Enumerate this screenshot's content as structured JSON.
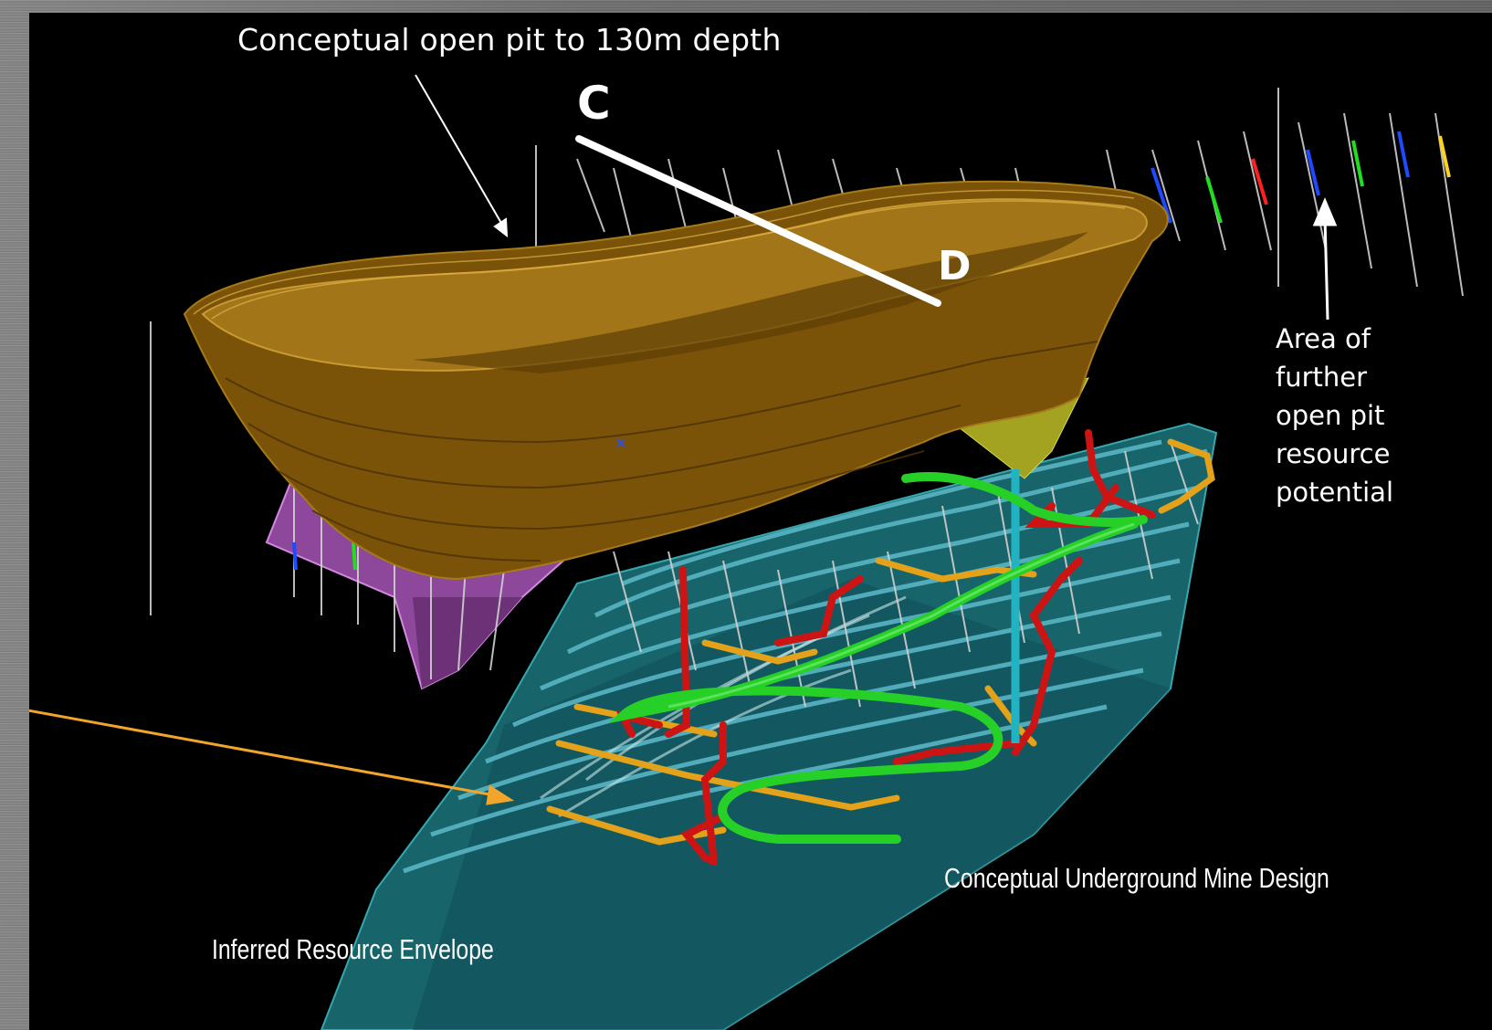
{
  "labels": {
    "pit": "Conceptual open pit to 130m depth",
    "c": "C",
    "d": "D",
    "area": [
      "Area of",
      "further",
      "open pit",
      "resource",
      "potential"
    ],
    "underground": "Conceptual Underground Mine Design",
    "envelope": "Inferred Resource Envelope"
  },
  "colors": {
    "pit": "#8a5e08",
    "pit_rim": "#b8861a",
    "envelope": "#2a8f96",
    "ore_body": "#b060c0",
    "decline": "#2fd12f",
    "drive": "#d01616",
    "access": "#e6a418",
    "shaft": "#19b5c9",
    "yellow_zone": "#bdbd2a",
    "arrow_orange": "#f1a52a"
  }
}
